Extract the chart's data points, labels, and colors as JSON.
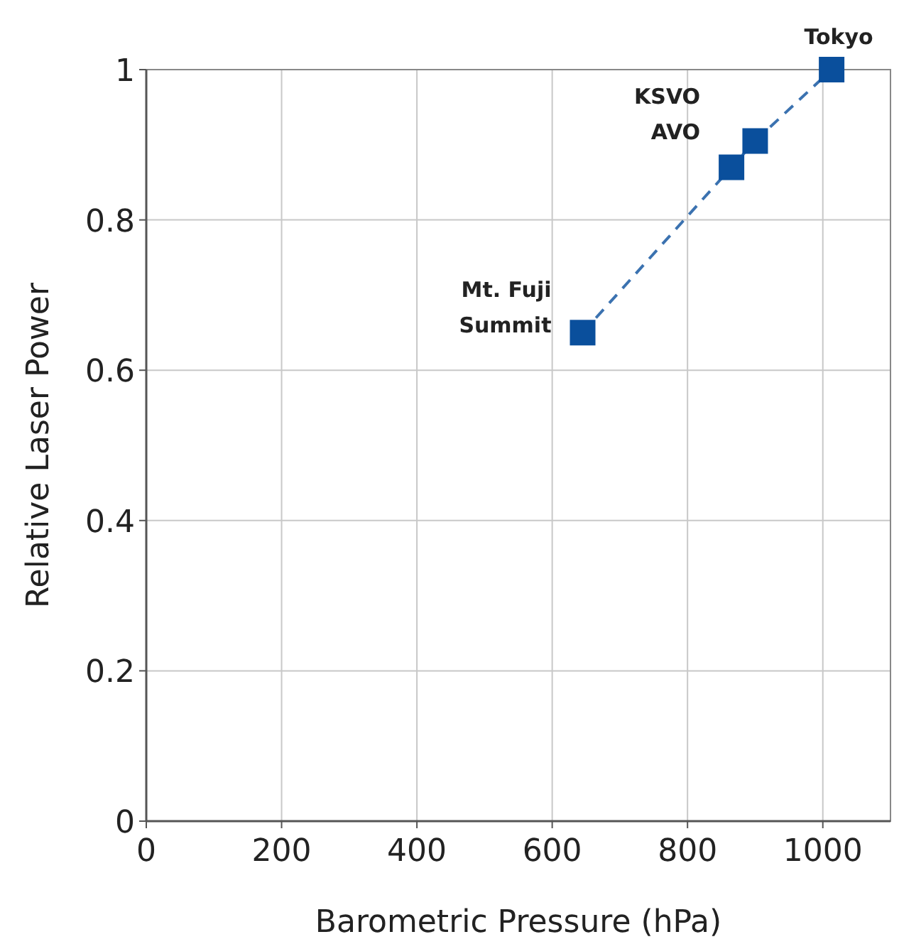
{
  "chart_data": {
    "type": "line",
    "xlabel": "Barometric Pressure (hPa)",
    "ylabel": "Relative Laser Power",
    "x": [
      645,
      865,
      900,
      1013
    ],
    "series": [
      {
        "color": "#0a4f9c",
        "values": [
          0.65,
          0.87,
          0.905,
          1
        ]
      }
    ],
    "xlim": [
      0,
      1100
    ],
    "xticks": [
      0,
      200,
      400,
      600,
      800,
      1000
    ],
    "ylim": [
      0,
      1
    ],
    "yticks": [
      0,
      0.2,
      0.4,
      0.6,
      0.8,
      1
    ],
    "grid": true,
    "marker": "square",
    "line_style": "dashed",
    "annotations": [
      {
        "text": "Mt. Fuji\nSummit",
        "x": 645,
        "y": 0.65
      },
      {
        "text": "KSVO\nAVO",
        "x": 865,
        "y": 0.87
      },
      {
        "text": "Tokyo",
        "x": 1013,
        "y": 1
      }
    ]
  }
}
